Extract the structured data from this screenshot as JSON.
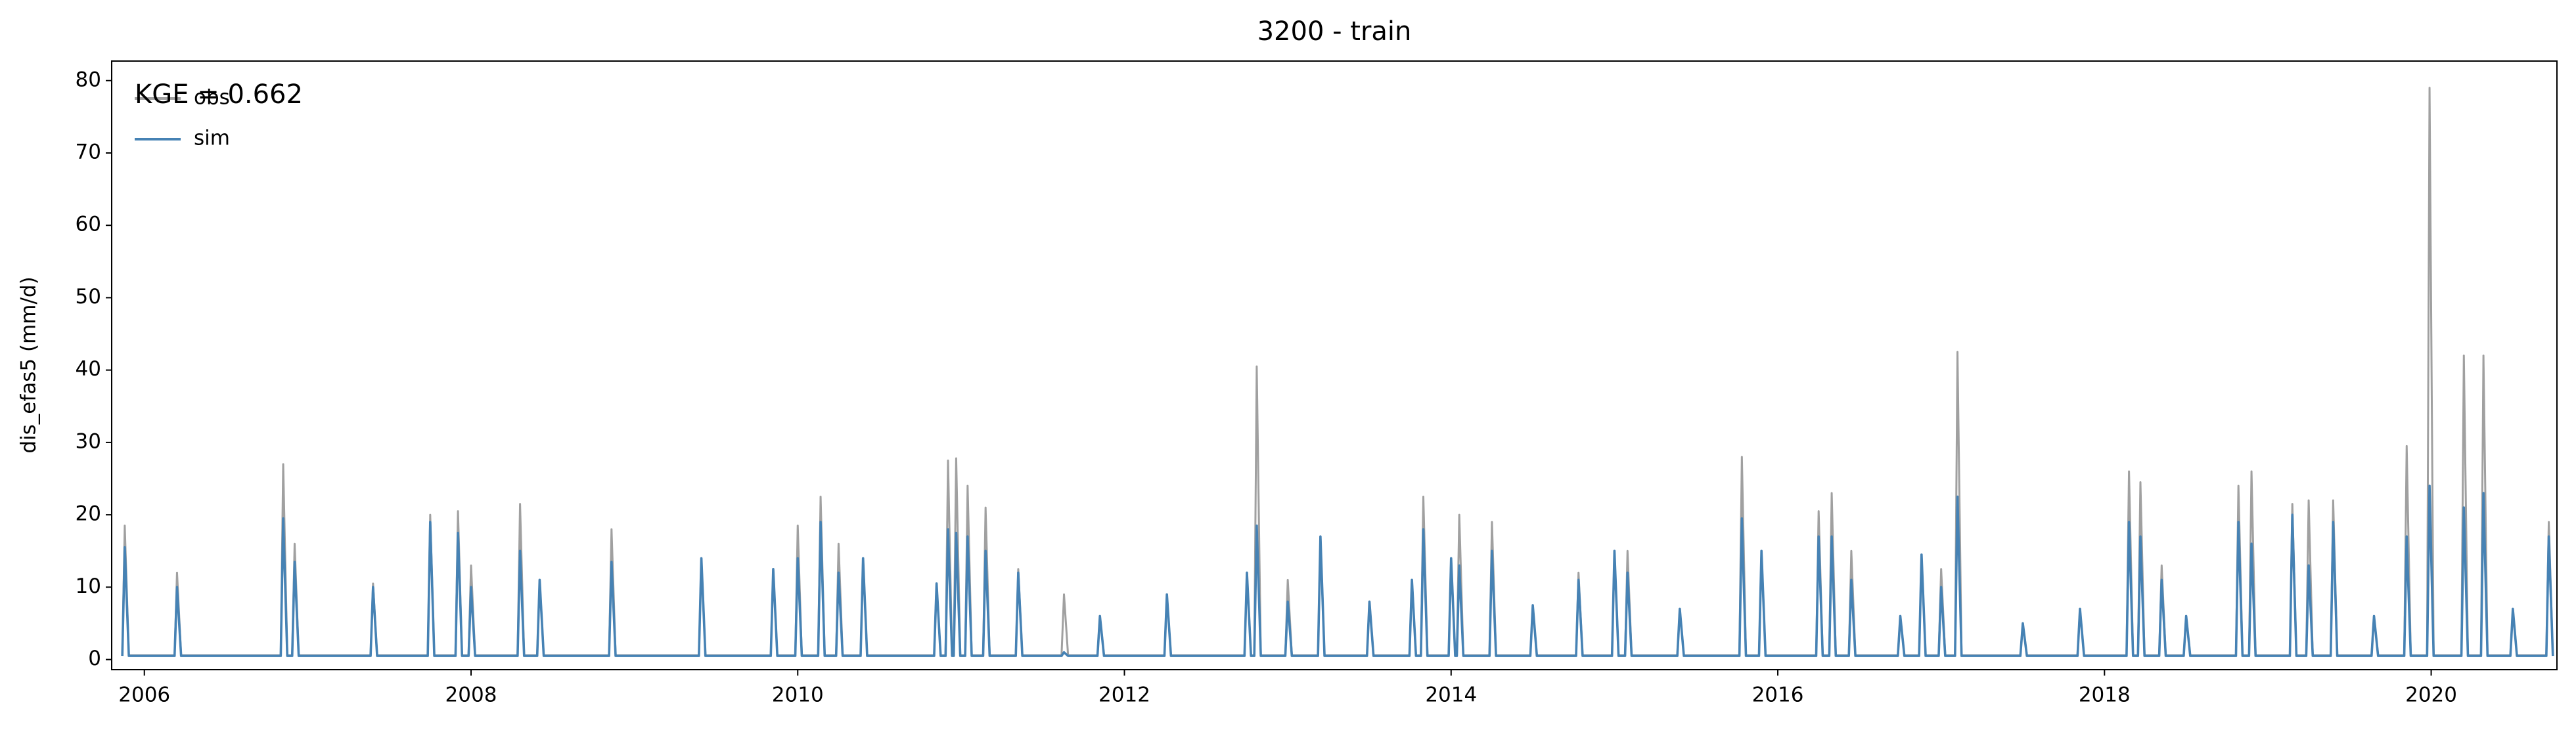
{
  "chart_data": {
    "type": "line",
    "title": "3200 - train",
    "ylabel": "dis_efas5 (mm/d)",
    "annotation": "KGE = 0.662",
    "legend": "upper left",
    "xlim": [
      2005.8,
      2020.77
    ],
    "xticks": [
      2006,
      2008,
      2010,
      2012,
      2014,
      2016,
      2018,
      2020
    ],
    "ylim": [
      -1.4,
      82.7
    ],
    "yticks": [
      0,
      10,
      20,
      30,
      40,
      50,
      60,
      70,
      80
    ],
    "x": [
      2005.865,
      2005.88,
      2005.905,
      2006.185,
      2006.2,
      2006.225,
      2006.835,
      2006.85,
      2006.875,
      2006.905,
      2006.92,
      2006.945,
      2007.385,
      2007.4,
      2007.425,
      2007.735,
      2007.75,
      2007.775,
      2007.905,
      2007.92,
      2007.945,
      2007.985,
      2008,
      2008.025,
      2008.285,
      2008.3,
      2008.325,
      2008.405,
      2008.42,
      2008.445,
      2008.845,
      2008.86,
      2008.885,
      2009.395,
      2009.41,
      2009.435,
      2009.835,
      2009.85,
      2009.875,
      2009.985,
      2010,
      2010.025,
      2010.125,
      2010.14,
      2010.165,
      2010.235,
      2010.25,
      2010.275,
      2010.385,
      2010.4,
      2010.425,
      2010.835,
      2010.85,
      2010.875,
      2010.905,
      2010.92,
      2010.945,
      2010.955,
      2010.97,
      2010.995,
      2011.025,
      2011.04,
      2011.065,
      2011.135,
      2011.15,
      2011.175,
      2011.335,
      2011.35,
      2011.375,
      2011.615,
      2011.63,
      2011.655,
      2011.835,
      2011.85,
      2011.875,
      2012.245,
      2012.26,
      2012.285,
      2012.735,
      2012.75,
      2012.775,
      2012.795,
      2012.81,
      2012.835,
      2012.985,
      2013,
      2013.025,
      2013.185,
      2013.2,
      2013.225,
      2013.485,
      2013.5,
      2013.525,
      2013.745,
      2013.76,
      2013.785,
      2013.815,
      2013.83,
      2013.855,
      2013.985,
      2014,
      2014.025,
      2014.035,
      2014.05,
      2014.075,
      2014.235,
      2014.25,
      2014.275,
      2014.485,
      2014.5,
      2014.525,
      2014.765,
      2014.78,
      2014.805,
      2014.985,
      2015,
      2015.025,
      2015.065,
      2015.08,
      2015.105,
      2015.385,
      2015.4,
      2015.425,
      2015.765,
      2015.78,
      2015.805,
      2015.885,
      2015.9,
      2015.925,
      2016.235,
      2016.25,
      2016.275,
      2016.315,
      2016.33,
      2016.355,
      2016.435,
      2016.45,
      2016.475,
      2016.735,
      2016.75,
      2016.775,
      2016.865,
      2016.88,
      2016.905,
      2016.985,
      2017,
      2017.025,
      2017.085,
      2017.1,
      2017.125,
      2017.485,
      2017.5,
      2017.525,
      2017.835,
      2017.85,
      2017.875,
      2018.135,
      2018.15,
      2018.175,
      2018.205,
      2018.22,
      2018.245,
      2018.335,
      2018.35,
      2018.375,
      2018.485,
      2018.5,
      2018.525,
      2018.805,
      2018.82,
      2018.845,
      2018.885,
      2018.9,
      2018.925,
      2019.135,
      2019.15,
      2019.175,
      2019.235,
      2019.25,
      2019.275,
      2019.385,
      2019.4,
      2019.425,
      2019.635,
      2019.65,
      2019.675,
      2019.835,
      2019.85,
      2019.875,
      2019.975,
      2019.99,
      2020.015,
      2020.185,
      2020.2,
      2020.225,
      2020.305,
      2020.32,
      2020.345,
      2020.485,
      2020.5,
      2020.525,
      2020.705,
      2020.72,
      2020.745
    ],
    "series": [
      {
        "name": "obs",
        "color": "#a0a0a0",
        "values": [
          0.6,
          18.5,
          0.6,
          0.6,
          12,
          0.6,
          0.6,
          27,
          0.6,
          0.6,
          16,
          0.6,
          0.6,
          10.5,
          0.6,
          0.6,
          20,
          0.6,
          0.6,
          20.5,
          0.6,
          0.6,
          13,
          0.6,
          0.6,
          21.5,
          0.6,
          0.6,
          11,
          0.6,
          0.6,
          18,
          0.6,
          0.6,
          14,
          0.6,
          0.6,
          12.5,
          0.6,
          0.6,
          18.5,
          0.6,
          0.6,
          22.5,
          0.6,
          0.6,
          16,
          0.6,
          0.6,
          14,
          0.6,
          0.6,
          10.5,
          0.6,
          0.6,
          27.5,
          0.6,
          0.6,
          27.8,
          0.6,
          0.6,
          24,
          0.6,
          0.6,
          21,
          0.6,
          0.6,
          12.5,
          0.6,
          0.6,
          9,
          0.6,
          0.6,
          6,
          0.6,
          0.6,
          9,
          0.6,
          0.6,
          12,
          0.6,
          0.6,
          40.5,
          0.6,
          0.6,
          11,
          0.6,
          0.6,
          17,
          0.6,
          0.6,
          8,
          0.6,
          0.6,
          11,
          0.6,
          0.6,
          22.5,
          0.6,
          0.6,
          14,
          0.6,
          0.6,
          20,
          0.6,
          0.6,
          19,
          0.6,
          0.6,
          7.5,
          0.6,
          0.6,
          12,
          0.6,
          0.6,
          15,
          0.6,
          0.6,
          15,
          0.6,
          0.6,
          7,
          0.6,
          0.6,
          28,
          0.6,
          0.6,
          15,
          0.6,
          0.6,
          20.5,
          0.6,
          0.6,
          23,
          0.6,
          0.6,
          15,
          0.6,
          0.6,
          6,
          0.6,
          0.6,
          14.5,
          0.6,
          0.6,
          12.5,
          0.6,
          0.6,
          42.5,
          0.6,
          0.6,
          5,
          0.6,
          0.6,
          7,
          0.6,
          0.6,
          26,
          0.6,
          0.6,
          24.5,
          0.6,
          0.6,
          13,
          0.6,
          0.6,
          6,
          0.6,
          0.6,
          24,
          0.6,
          0.6,
          26,
          0.6,
          0.6,
          21.5,
          0.6,
          0.6,
          22,
          0.6,
          0.6,
          22,
          0.6,
          0.6,
          6,
          0.6,
          0.6,
          29.5,
          0.6,
          0.6,
          79,
          0.6,
          0.6,
          42,
          0.6,
          0.6,
          42,
          0.6,
          0.6,
          7,
          0.6,
          0.6,
          19,
          0.6
        ]
      },
      {
        "name": "sim",
        "color": "#4682b4",
        "values": [
          0.5,
          15.5,
          0.5,
          0.5,
          10,
          0.5,
          0.5,
          19.5,
          0.5,
          0.5,
          13.5,
          0.5,
          0.5,
          10,
          0.5,
          0.5,
          19,
          0.5,
          0.5,
          17.5,
          0.5,
          0.5,
          10,
          0.5,
          0.5,
          15,
          0.5,
          0.5,
          11,
          0.5,
          0.5,
          13.5,
          0.5,
          0.5,
          14,
          0.5,
          0.5,
          12.5,
          0.5,
          0.5,
          14,
          0.5,
          0.5,
          19,
          0.5,
          0.5,
          12,
          0.5,
          0.5,
          14,
          0.5,
          0.5,
          10.5,
          0.5,
          0.5,
          18,
          0.5,
          0.5,
          17.5,
          0.5,
          0.5,
          17,
          0.5,
          0.5,
          15,
          0.5,
          0.5,
          12,
          0.5,
          0.5,
          1,
          0.5,
          0.5,
          6,
          0.5,
          0.5,
          9,
          0.5,
          0.5,
          12,
          0.5,
          0.5,
          18.5,
          0.5,
          0.5,
          8,
          0.5,
          0.5,
          17,
          0.5,
          0.5,
          8,
          0.5,
          0.5,
          11,
          0.5,
          0.5,
          18,
          0.5,
          0.5,
          14,
          0.5,
          0.5,
          13,
          0.5,
          0.5,
          15,
          0.5,
          0.5,
          7.5,
          0.5,
          0.5,
          11,
          0.5,
          0.5,
          15,
          0.5,
          0.5,
          12,
          0.5,
          0.5,
          7,
          0.5,
          0.5,
          19.5,
          0.5,
          0.5,
          15,
          0.5,
          0.5,
          17,
          0.5,
          0.5,
          17,
          0.5,
          0.5,
          11,
          0.5,
          0.5,
          6,
          0.5,
          0.5,
          14.5,
          0.5,
          0.5,
          10,
          0.5,
          0.5,
          22.5,
          0.5,
          0.5,
          5,
          0.5,
          0.5,
          7,
          0.5,
          0.5,
          19,
          0.5,
          0.5,
          17,
          0.5,
          0.5,
          11,
          0.5,
          0.5,
          6,
          0.5,
          0.5,
          19,
          0.5,
          0.5,
          16,
          0.5,
          0.5,
          20,
          0.5,
          0.5,
          13,
          0.5,
          0.5,
          19,
          0.5,
          0.5,
          6,
          0.5,
          0.5,
          17,
          0.5,
          0.5,
          24,
          0.5,
          0.5,
          21,
          0.5,
          0.5,
          23,
          0.5,
          0.5,
          7,
          0.5,
          0.5,
          17,
          0.5
        ]
      }
    ]
  }
}
